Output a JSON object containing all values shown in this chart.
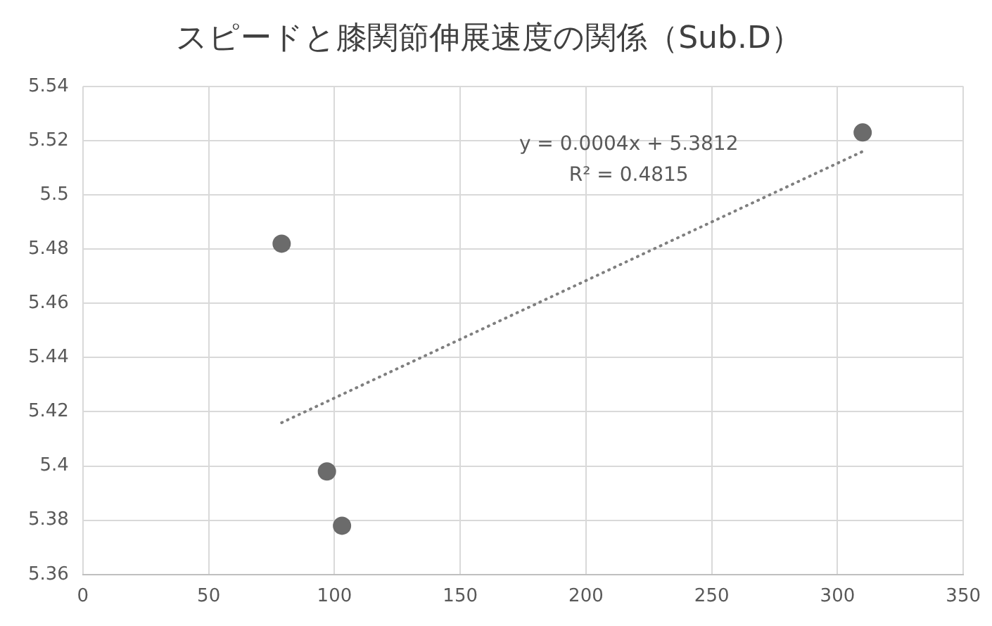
{
  "chart_data": {
    "type": "scatter",
    "title": "スピードと膝関節伸展速度の関係（Sub.D）",
    "series": [
      {
        "type": "scatter",
        "color": "#6b6b6b",
        "marker": "circle",
        "x": [
          79,
          97,
          103,
          310
        ],
        "values": [
          5.482,
          5.398,
          5.378,
          5.523
        ]
      },
      {
        "type": "line",
        "color": "#7f7f7f",
        "line_style": "dotted",
        "marker": "none",
        "x": [
          79,
          310
        ],
        "values": [
          5.416,
          5.516
        ]
      }
    ],
    "annotations": [
      "y = 0.0004x + 5.3812",
      "R² = 0.4815"
    ],
    "xlim": [
      0,
      350
    ],
    "xticks": [
      0,
      50,
      100,
      150,
      200,
      250,
      300,
      350
    ],
    "ylim": [
      5.36,
      5.54
    ],
    "yticks": [
      5.36,
      5.38,
      5.4,
      5.42,
      5.44,
      5.46,
      5.48,
      5.5,
      5.52,
      5.54
    ],
    "grid": true,
    "legend": false
  }
}
